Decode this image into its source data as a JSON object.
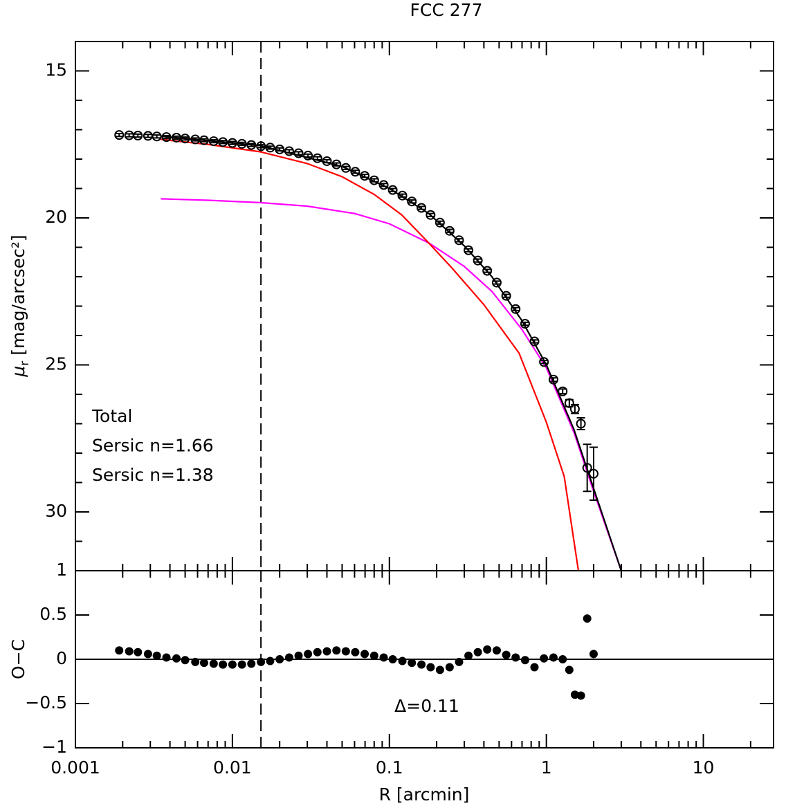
{
  "chart_data": [
    {
      "type": "line",
      "title": "FCC 277",
      "ylabel": [
        "μ",
        "r",
        " [mag/arcsec²]"
      ],
      "ylim": [
        32,
        14
      ],
      "yticks": [
        15,
        20,
        25,
        30
      ],
      "yminor": [
        16,
        17,
        18,
        19,
        21,
        22,
        23,
        24,
        26,
        27,
        28,
        29,
        31
      ],
      "legend": "lower left",
      "vline": 0.0152,
      "series": [
        {
          "name": "Total",
          "color": "#000000",
          "x": [
            0.0035,
            0.015,
            0.05,
            0.1,
            0.178,
            0.3,
            0.45,
            0.7,
            1.0,
            1.5,
            2.0,
            3.0
          ],
          "values": [
            17.22,
            17.54,
            18.25,
            19.0,
            19.85,
            20.95,
            22.0,
            23.5,
            25.0,
            27.2,
            29.2,
            32.0
          ]
        },
        {
          "name": "Sersic n=1.66",
          "color": "#ff0000",
          "x": [
            0.0035,
            0.007,
            0.015,
            0.03,
            0.05,
            0.08,
            0.12,
            0.178,
            0.25,
            0.4,
            0.67,
            1.0,
            1.3,
            1.6
          ],
          "values": [
            17.33,
            17.5,
            17.75,
            18.15,
            18.6,
            19.2,
            19.9,
            20.85,
            21.7,
            22.95,
            24.6,
            26.95,
            28.8,
            32.0
          ]
        },
        {
          "name": "Sersic n=1.38",
          "color": "#ff00ff",
          "x": [
            0.0035,
            0.007,
            0.015,
            0.03,
            0.06,
            0.1,
            0.178,
            0.3,
            0.45,
            0.7,
            1.0,
            1.5,
            2.0,
            3.0
          ],
          "values": [
            19.35,
            19.4,
            19.48,
            19.6,
            19.85,
            20.2,
            20.85,
            21.65,
            22.5,
            23.8,
            25.1,
            27.3,
            29.3,
            32.0
          ]
        }
      ],
      "points": {
        "x": [
          0.0019,
          0.0022,
          0.0025,
          0.0029,
          0.0033,
          0.0038,
          0.0044,
          0.005,
          0.0058,
          0.0066,
          0.0076,
          0.0087,
          0.01,
          0.0115,
          0.0132,
          0.0152,
          0.0174,
          0.02,
          0.023,
          0.0264,
          0.0303,
          0.0348,
          0.04,
          0.046,
          0.0528,
          0.0606,
          0.0696,
          0.08,
          0.092,
          0.105,
          0.121,
          0.139,
          0.16,
          0.183,
          0.21,
          0.242,
          0.278,
          0.319,
          0.366,
          0.42,
          0.483,
          0.555,
          0.637,
          0.732,
          0.84,
          0.965,
          1.11,
          1.27,
          1.4,
          1.52,
          1.66,
          1.82,
          2.0
        ],
        "values": [
          17.18,
          17.19,
          17.2,
          17.21,
          17.23,
          17.25,
          17.27,
          17.3,
          17.33,
          17.36,
          17.39,
          17.42,
          17.45,
          17.48,
          17.52,
          17.56,
          17.61,
          17.67,
          17.73,
          17.8,
          17.88,
          17.97,
          18.07,
          18.18,
          18.3,
          18.43,
          18.57,
          18.72,
          18.88,
          19.05,
          19.24,
          19.44,
          19.66,
          19.9,
          20.16,
          20.44,
          20.76,
          21.1,
          21.45,
          21.8,
          22.2,
          22.65,
          23.1,
          23.6,
          24.2,
          24.9,
          25.5,
          25.9,
          26.3,
          26.5,
          27.0,
          28.5,
          28.7
        ],
        "errors": [
          0.05,
          0.05,
          0.05,
          0.05,
          0.05,
          0.05,
          0.05,
          0.05,
          0.05,
          0.05,
          0.05,
          0.05,
          0.05,
          0.05,
          0.05,
          0.05,
          0.05,
          0.05,
          0.05,
          0.05,
          0.05,
          0.05,
          0.05,
          0.05,
          0.05,
          0.05,
          0.05,
          0.05,
          0.05,
          0.05,
          0.05,
          0.05,
          0.05,
          0.05,
          0.05,
          0.05,
          0.05,
          0.05,
          0.05,
          0.05,
          0.05,
          0.05,
          0.05,
          0.05,
          0.05,
          0.05,
          0.06,
          0.08,
          0.12,
          0.15,
          0.2,
          0.8,
          0.9
        ]
      }
    },
    {
      "type": "scatter",
      "ylabel": "O−C",
      "xlabel": "R [arcmin]",
      "annotation": "Δ=0.11",
      "log_x": true,
      "xlim": [
        0.001,
        28
      ],
      "xticks": [
        0.001,
        0.01,
        0.1,
        1,
        10
      ],
      "xminor": [
        0.002,
        0.003,
        0.004,
        0.005,
        0.006,
        0.007,
        0.008,
        0.009,
        0.02,
        0.03,
        0.04,
        0.05,
        0.06,
        0.07,
        0.08,
        0.09,
        0.2,
        0.3,
        0.4,
        0.5,
        0.6,
        0.7,
        0.8,
        0.9,
        2,
        3,
        4,
        5,
        6,
        7,
        8,
        9,
        20
      ],
      "ylim": [
        -1,
        1
      ],
      "yticks": [
        {
          "value": -1,
          "label": "−1"
        },
        {
          "value": -0.5,
          "label": "−0.5"
        },
        0,
        0.5,
        1
      ],
      "hline": 0,
      "vline": 0.0152,
      "x": [
        0.0019,
        0.0022,
        0.0025,
        0.0029,
        0.0033,
        0.0038,
        0.0044,
        0.005,
        0.0058,
        0.0066,
        0.0076,
        0.0087,
        0.01,
        0.0115,
        0.0132,
        0.0152,
        0.0174,
        0.02,
        0.023,
        0.0264,
        0.0303,
        0.0348,
        0.04,
        0.046,
        0.0528,
        0.0606,
        0.0696,
        0.08,
        0.092,
        0.105,
        0.121,
        0.139,
        0.16,
        0.183,
        0.21,
        0.242,
        0.278,
        0.319,
        0.366,
        0.42,
        0.483,
        0.555,
        0.637,
        0.732,
        0.84,
        0.965,
        1.11,
        1.27,
        1.4,
        1.52,
        1.66,
        1.82,
        2.0
      ],
      "values": [
        0.1,
        0.09,
        0.08,
        0.06,
        0.04,
        0.02,
        0.01,
        -0.01,
        -0.03,
        -0.04,
        -0.05,
        -0.06,
        -0.06,
        -0.06,
        -0.05,
        -0.03,
        -0.02,
        0.0,
        0.02,
        0.04,
        0.06,
        0.08,
        0.09,
        0.1,
        0.09,
        0.08,
        0.06,
        0.04,
        0.02,
        0.0,
        -0.02,
        -0.04,
        -0.06,
        -0.09,
        -0.12,
        -0.09,
        -0.03,
        0.04,
        0.08,
        0.11,
        0.1,
        0.05,
        0.02,
        -0.01,
        -0.09,
        0.01,
        0.02,
        0.0,
        -0.12,
        -0.4,
        -0.41,
        0.46,
        0.06
      ],
      "color": "#000000"
    }
  ]
}
